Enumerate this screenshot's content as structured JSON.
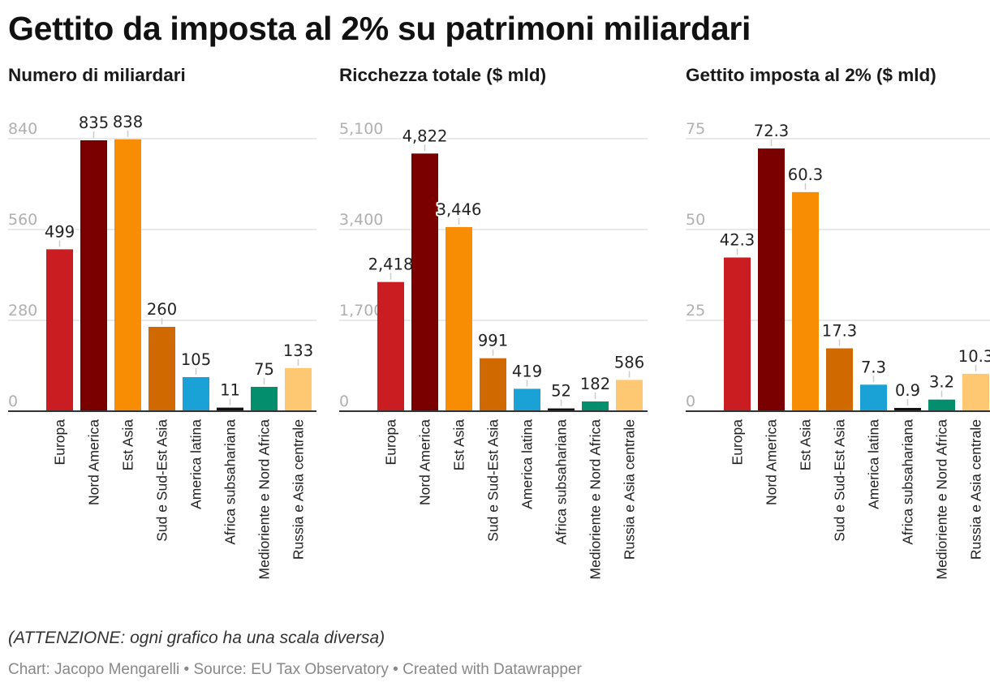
{
  "title": "Gettito da imposta al 2% su patrimoni miliardari",
  "note": "(ATTENZIONE: ogni grafico ha una scala diversa)",
  "footer": {
    "chart_label": "Chart:",
    "author": "Jacopo Mengarelli",
    "source_label": "Source:",
    "source": "EU Tax Observatory",
    "created_with": "Created with Datawrapper"
  },
  "chart_data": [
    {
      "type": "bar",
      "title": "Numero di miliardari",
      "categories": [
        "Europa",
        "Nord America",
        "Est Asia",
        "Sud e Sud-Est Asia",
        "America latina",
        "Africa subsahariana",
        "Medioriente e Nord Africa",
        "Russia e Asia centrale"
      ],
      "values": [
        499,
        835,
        838,
        260,
        105,
        11,
        75,
        133
      ],
      "value_labels": [
        "499",
        "835",
        "838",
        "260",
        "105",
        "11",
        "75",
        "133"
      ],
      "yticks": [
        0,
        280,
        560,
        840
      ],
      "ytick_labels": [
        "0",
        "280",
        "560",
        "840"
      ],
      "ylim": [
        0,
        840
      ],
      "grid": true
    },
    {
      "type": "bar",
      "title": "Ricchezza totale ($ mld)",
      "categories": [
        "Europa",
        "Nord America",
        "Est Asia",
        "Sud e Sud-Est Asia",
        "America latina",
        "Africa subsahariana",
        "Medioriente e Nord Africa",
        "Russia e Asia centrale"
      ],
      "values": [
        2418,
        4822,
        3446,
        991,
        419,
        52,
        182,
        586
      ],
      "value_labels": [
        "2,418",
        "4,822",
        "3,446",
        "991",
        "419",
        "52",
        "182",
        "586"
      ],
      "yticks": [
        0,
        1700,
        3400,
        5100
      ],
      "ytick_labels": [
        "0",
        "1,700",
        "3,400",
        "5,100"
      ],
      "ylim": [
        0,
        5100
      ],
      "grid": true
    },
    {
      "type": "bar",
      "title": "Gettito imposta al 2% ($ mld)",
      "categories": [
        "Europa",
        "Nord America",
        "Est Asia",
        "Sud e Sud-Est Asia",
        "America latina",
        "Africa subsahariana",
        "Medioriente e Nord Africa",
        "Russia e Asia centrale"
      ],
      "values": [
        42.3,
        72.3,
        60.3,
        17.3,
        7.3,
        0.9,
        3.2,
        10.3
      ],
      "value_labels": [
        "42.3",
        "72.3",
        "60.3",
        "17.3",
        "7.3",
        "0.9",
        "3.2",
        "10.3"
      ],
      "yticks": [
        0,
        25,
        50,
        75
      ],
      "ytick_labels": [
        "0",
        "25",
        "50",
        "75"
      ],
      "ylim": [
        0,
        75
      ],
      "grid": true
    }
  ],
  "colors": [
    "#c91d22",
    "#7a0000",
    "#f88d04",
    "#d06a00",
    "#1aa2d6",
    "#111111",
    "#038f6e",
    "#fec873"
  ]
}
